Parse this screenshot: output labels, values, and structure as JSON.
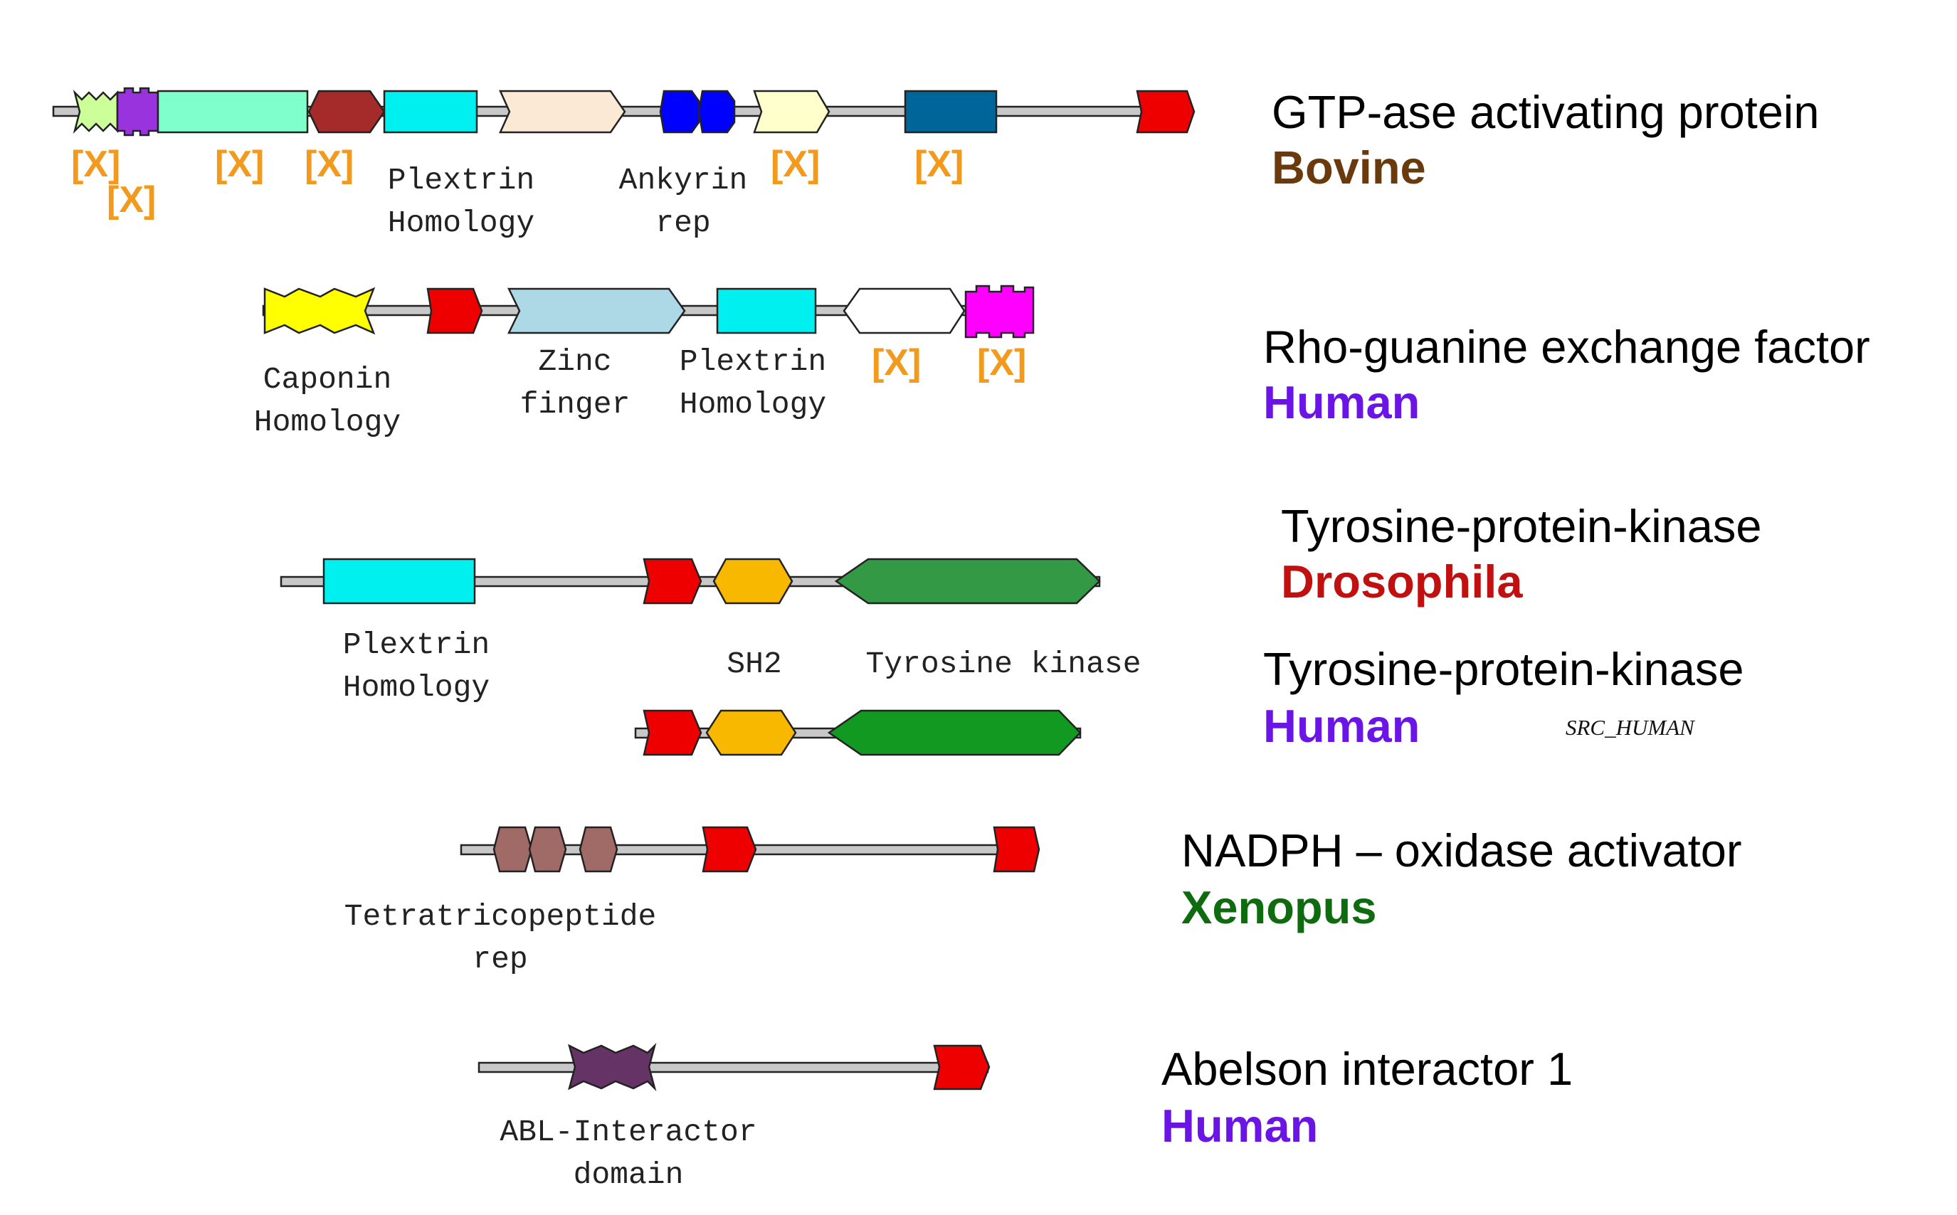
{
  "colors": {
    "backbone": "#c8c8c8",
    "x_label": "#f29a1e",
    "bovine": "#6b3a0c",
    "human": "#6a14e6",
    "drosophila": "#c01010",
    "xenopus": "#0e6b0e",
    "red_domain": "#ee0000",
    "cyan_domain": "#00f0f0",
    "orange_domain": "#f8b800"
  },
  "x_marker": "[X]",
  "proteins": [
    {
      "title": "GTP-ase activating protein",
      "species": "Bovine",
      "species_color": "#6b3a0c",
      "labels": [
        {
          "line1": "Plextrin",
          "line2": "Homology"
        },
        {
          "line1": "Ankyrin",
          "line2": "rep"
        }
      ]
    },
    {
      "title": "Rho-guanine exchange factor",
      "species": "Human",
      "species_color": "#6a14e6",
      "labels": [
        {
          "line1": "Caponin",
          "line2": "Homology"
        },
        {
          "line1": "Zinc",
          "line2": "finger"
        },
        {
          "line1": "Plextrin",
          "line2": "Homology"
        }
      ]
    },
    {
      "title": "Tyrosine-protein-kinase",
      "species": "Drosophila",
      "species_color": "#c01010",
      "labels": [
        {
          "line1": "Plextrin",
          "line2": "Homology"
        },
        {
          "line1": "SH2",
          "line2": ""
        },
        {
          "line1": "Tyrosine kinase",
          "line2": ""
        }
      ]
    },
    {
      "title": "Tyrosine-protein-kinase",
      "species": "Human",
      "species_color": "#6a14e6",
      "id": "SRC_HUMAN"
    },
    {
      "title": "NADPH – oxidase activator",
      "species": "Xenopus",
      "species_color": "#0e6b0e",
      "labels": [
        {
          "line1": "Tetratricopeptide",
          "line2": "rep"
        }
      ]
    },
    {
      "title": "Abelson interactor 1",
      "species": "Human",
      "species_color": "#6a14e6",
      "labels": [
        {
          "line1": "ABL-Interactor",
          "line2": "domain"
        }
      ]
    }
  ]
}
